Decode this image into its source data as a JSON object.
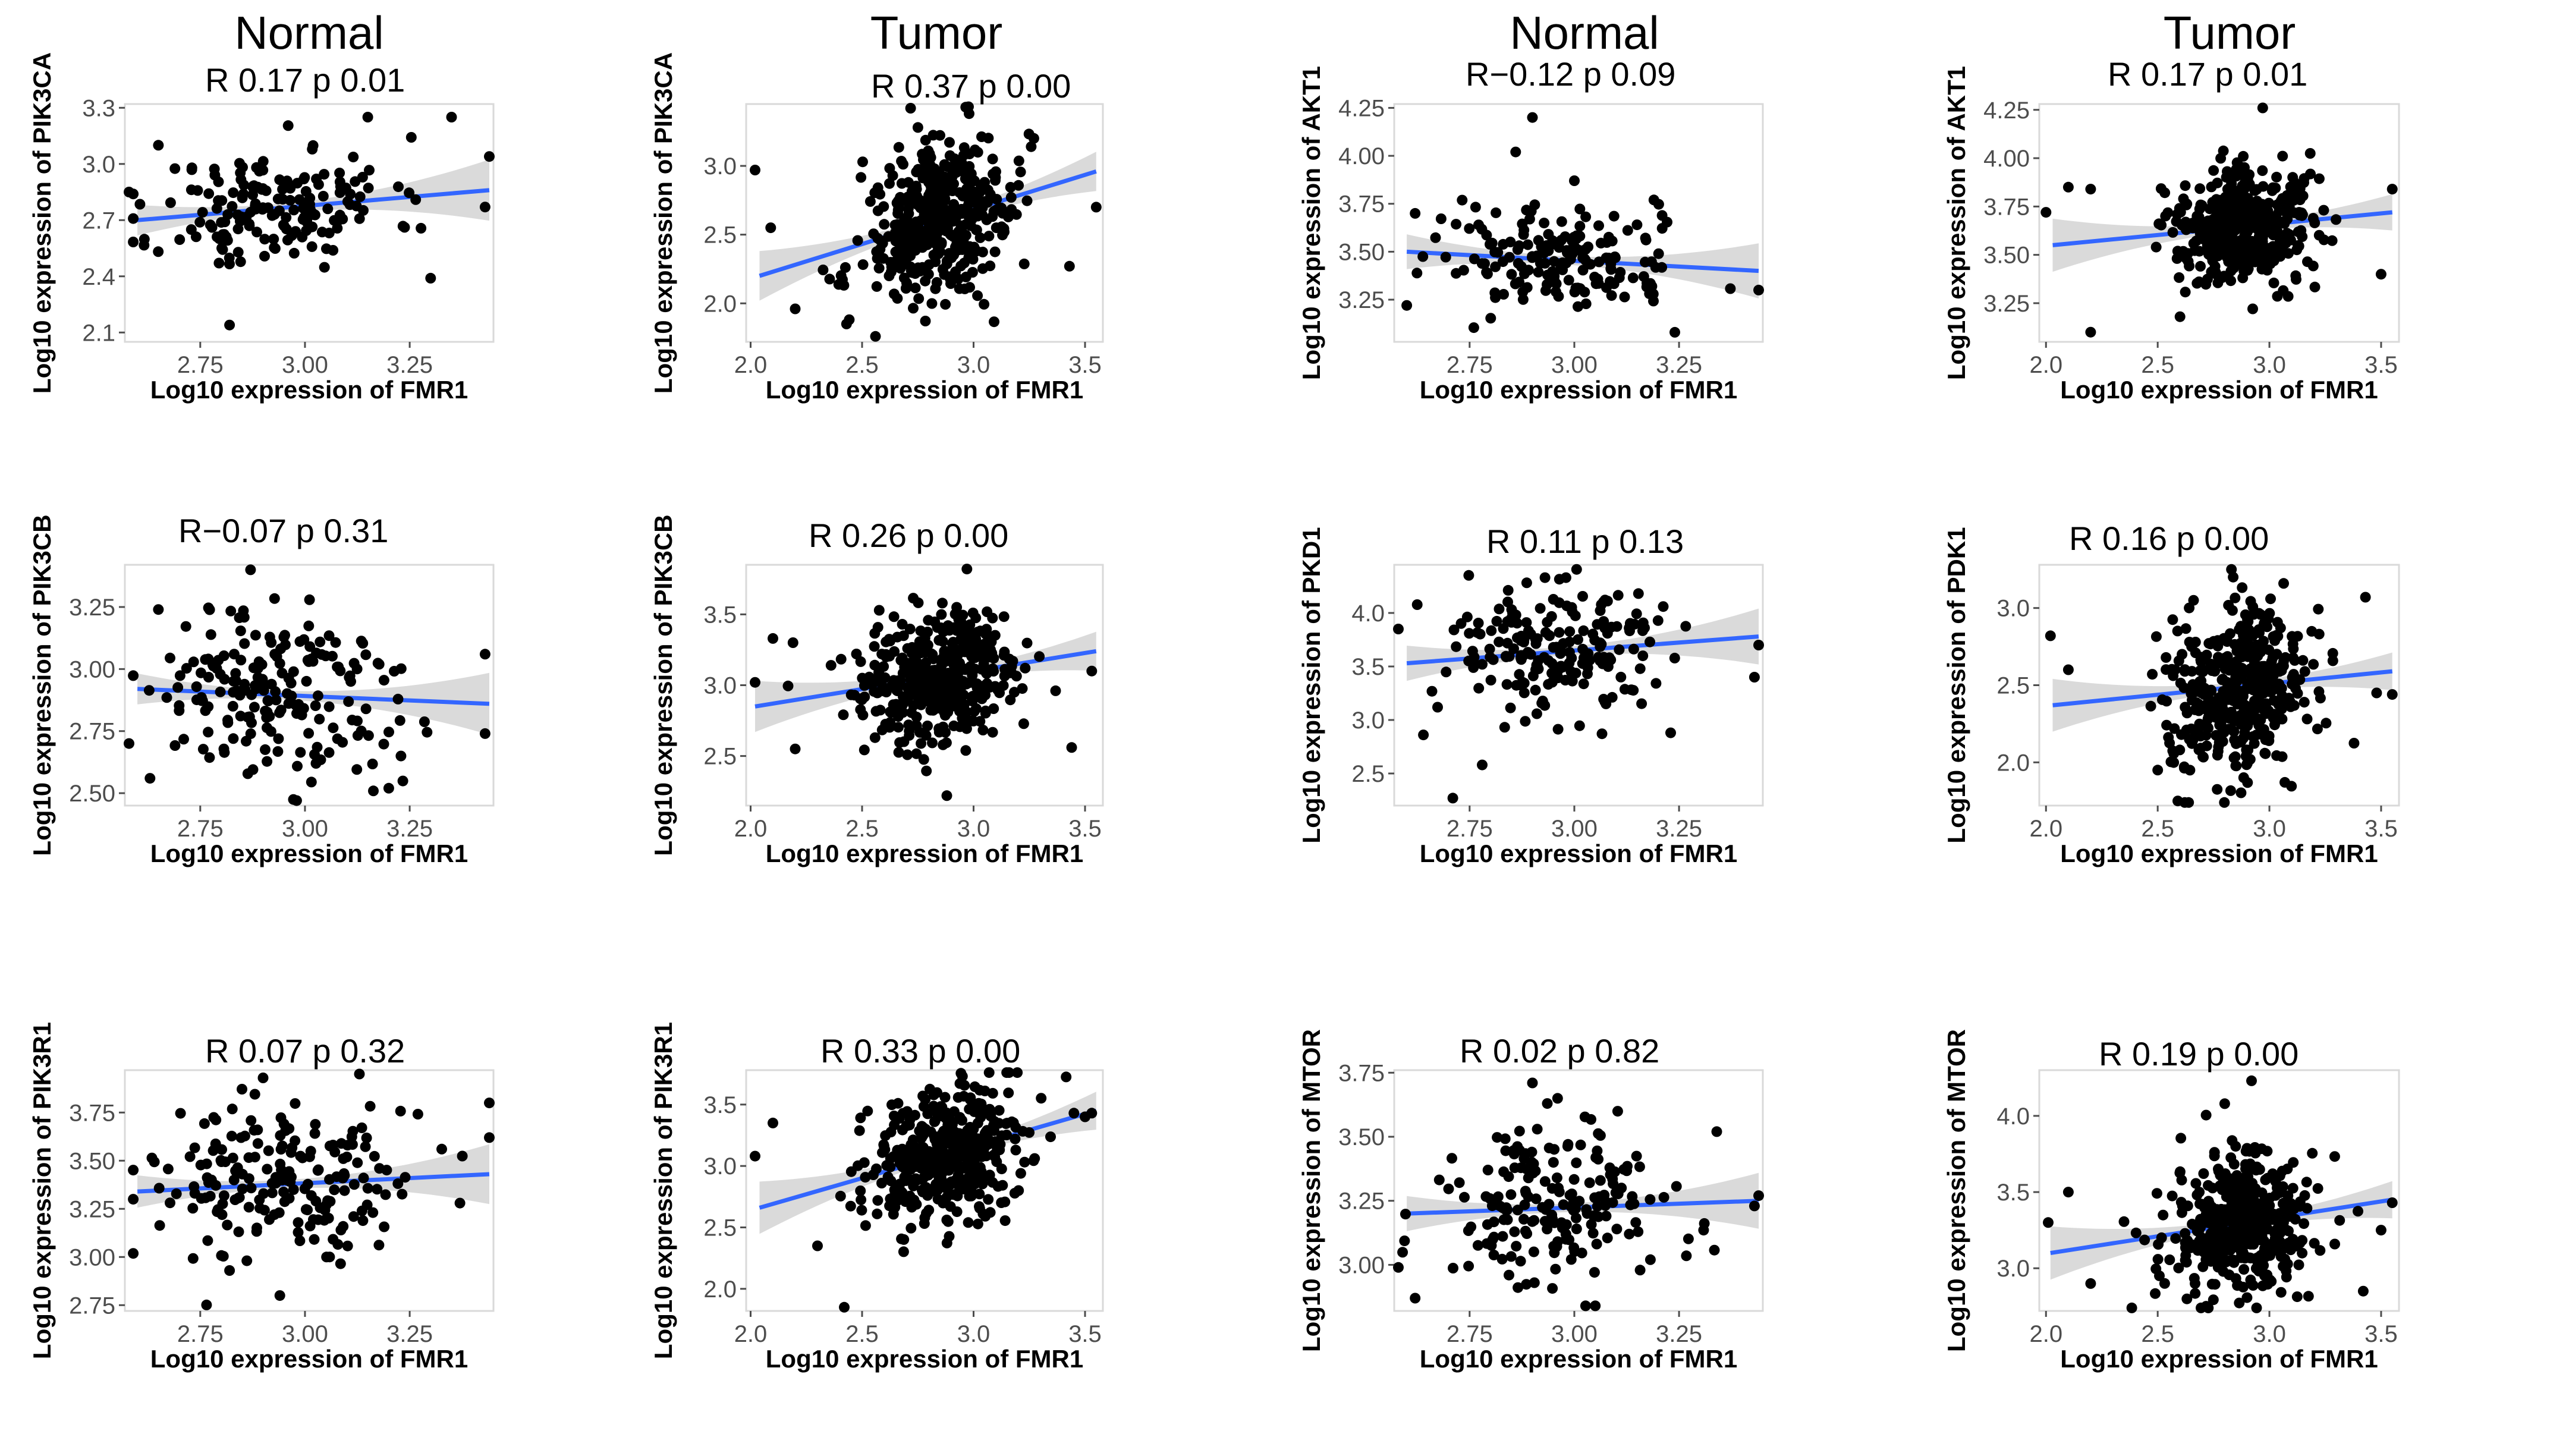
{
  "column_headers": [
    "Normal",
    "Tumor",
    "Normal",
    "Tumor"
  ],
  "chart_data": [
    {
      "type": "scatter",
      "group": "Normal",
      "title": "R 0.17  p 0.01",
      "xlabel": "Log10 expression of FMR1",
      "ylabel": "Log10 expression of PIK3CA",
      "xlim": [
        2.57,
        3.45
      ],
      "ylim": [
        2.05,
        3.32
      ],
      "xticks": [
        "2.75",
        "3.00",
        "3.25"
      ],
      "xtick_values": [
        2.75,
        3.0,
        3.25
      ],
      "yticks": [
        "2.1",
        "2.4",
        "2.7",
        "3.0",
        "3.3"
      ],
      "ytick_values": [
        2.1,
        2.4,
        2.7,
        3.0,
        3.3
      ],
      "fit": {
        "x": [
          2.6,
          3.44
        ],
        "y": [
          2.7,
          2.86
        ]
      },
      "cloud": {
        "n": 170,
        "center": [
          2.93,
          2.78
        ],
        "sd": [
          0.14,
          0.16
        ],
        "seed": 11
      },
      "points": [
        [
          2.82,
          2.14
        ],
        [
          3.3,
          2.39
        ],
        [
          2.65,
          3.1
        ],
        [
          3.35,
          3.25
        ],
        [
          3.44,
          3.04
        ],
        [
          3.43,
          2.77
        ],
        [
          2.58,
          2.85
        ],
        [
          3.15,
          3.25
        ]
      ]
    },
    {
      "type": "scatter",
      "group": "Tumor",
      "title": "R 0.37  p 0.00",
      "xlabel": "Log10 expression of FMR1",
      "ylabel": "Log10 expression of PIK3CA",
      "xlim": [
        1.98,
        3.58
      ],
      "ylim": [
        1.72,
        3.45
      ],
      "xticks": [
        "2.0",
        "2.5",
        "3.0",
        "3.5"
      ],
      "xtick_values": [
        2.0,
        2.5,
        3.0,
        3.5
      ],
      "yticks": [
        "2.0",
        "2.5",
        "3.0"
      ],
      "ytick_values": [
        2.0,
        2.5,
        3.0
      ],
      "fit": {
        "x": [
          2.04,
          3.55
        ],
        "y": [
          2.2,
          2.96
        ]
      },
      "cloud": {
        "n": 430,
        "center": [
          2.85,
          2.62
        ],
        "sd": [
          0.17,
          0.28
        ],
        "seed": 21
      },
      "points": [
        [
          2.02,
          2.97
        ],
        [
          2.09,
          2.55
        ],
        [
          2.2,
          1.96
        ],
        [
          2.43,
          1.85
        ],
        [
          2.56,
          1.76
        ],
        [
          3.43,
          2.27
        ],
        [
          3.55,
          2.7
        ],
        [
          2.98,
          3.38
        ]
      ]
    },
    {
      "type": "scatter",
      "group": "Normal",
      "title": "R−0.12 p 0.09",
      "xlabel": "Log10 expression of FMR1",
      "ylabel": "Log10 expression of AKT1",
      "xlim": [
        2.57,
        3.45
      ],
      "ylim": [
        3.03,
        4.27
      ],
      "xticks": [
        "2.75",
        "3.00",
        "3.25"
      ],
      "xtick_values": [
        2.75,
        3.0,
        3.25
      ],
      "yticks": [
        "3.25",
        "3.50",
        "3.75",
        "4.00",
        "4.25"
      ],
      "ytick_values": [
        3.25,
        3.5,
        3.75,
        4.0,
        4.25
      ],
      "fit": {
        "x": [
          2.6,
          3.44
        ],
        "y": [
          3.5,
          3.4
        ]
      },
      "cloud": {
        "n": 170,
        "center": [
          2.96,
          3.44
        ],
        "sd": [
          0.15,
          0.13
        ],
        "seed": 31
      },
      "points": [
        [
          2.9,
          4.2
        ],
        [
          2.86,
          4.02
        ],
        [
          2.6,
          3.22
        ],
        [
          3.24,
          3.08
        ],
        [
          3.44,
          3.3
        ],
        [
          3.19,
          3.77
        ],
        [
          3.0,
          3.87
        ],
        [
          2.62,
          3.7
        ]
      ]
    },
    {
      "type": "scatter",
      "group": "Tumor",
      "title": "R 0.17  p 0.01",
      "xlabel": "Log10 expression of FMR1",
      "ylabel": "Log10 expression of AKT1",
      "xlim": [
        1.97,
        3.58
      ],
      "ylim": [
        3.05,
        4.28
      ],
      "xticks": [
        "2.0",
        "2.5",
        "3.0",
        "3.5"
      ],
      "xtick_values": [
        2.0,
        2.5,
        3.0,
        3.5
      ],
      "yticks": [
        "3.25",
        "3.50",
        "3.75",
        "4.00",
        "4.25"
      ],
      "ytick_values": [
        3.25,
        3.5,
        3.75,
        4.0,
        4.25
      ],
      "fit": {
        "x": [
          2.03,
          3.55
        ],
        "y": [
          3.55,
          3.72
        ]
      },
      "cloud": {
        "n": 430,
        "center": [
          2.88,
          3.66
        ],
        "sd": [
          0.16,
          0.15
        ],
        "seed": 41
      },
      "points": [
        [
          2.0,
          3.72
        ],
        [
          2.1,
          3.85
        ],
        [
          2.2,
          3.84
        ],
        [
          2.2,
          3.1
        ],
        [
          2.97,
          4.26
        ],
        [
          3.5,
          3.4
        ],
        [
          3.55,
          3.84
        ],
        [
          2.6,
          3.18
        ]
      ]
    },
    {
      "type": "scatter",
      "group": "Normal",
      "title": "R−0.07 p 0.31",
      "xlabel": "Log10 expression of FMR1",
      "ylabel": "Log10 expression of PIK3CB",
      "xlim": [
        2.57,
        3.45
      ],
      "ylim": [
        2.45,
        3.42
      ],
      "xticks": [
        "2.75",
        "3.00",
        "3.25"
      ],
      "xtick_values": [
        2.75,
        3.0,
        3.25
      ],
      "yticks": [
        "2.50",
        "2.75",
        "3.00",
        "3.25"
      ],
      "ytick_values": [
        2.5,
        2.75,
        3.0,
        3.25
      ],
      "fit": {
        "x": [
          2.6,
          3.44
        ],
        "y": [
          2.92,
          2.86
        ]
      },
      "cloud": {
        "n": 190,
        "center": [
          2.93,
          2.9
        ],
        "sd": [
          0.15,
          0.18
        ],
        "seed": 51
      },
      "points": [
        [
          2.87,
          3.4
        ],
        [
          2.58,
          2.7
        ],
        [
          2.63,
          2.56
        ],
        [
          2.65,
          3.24
        ],
        [
          3.43,
          3.06
        ],
        [
          3.43,
          2.74
        ],
        [
          2.98,
          2.47
        ],
        [
          3.2,
          2.52
        ]
      ]
    },
    {
      "type": "scatter",
      "group": "Tumor",
      "title": "R 0.26  p 0.00",
      "xlabel": "Log10 expression of FMR1",
      "ylabel": "Log10 expression of PIK3CB",
      "xlim": [
        1.98,
        3.58
      ],
      "ylim": [
        2.15,
        3.85
      ],
      "xticks": [
        "2.0",
        "2.5",
        "3.0",
        "3.5"
      ],
      "xtick_values": [
        2.0,
        2.5,
        3.0,
        3.5
      ],
      "yticks": [
        "2.5",
        "3.0",
        "3.5"
      ],
      "ytick_values": [
        2.5,
        3.0,
        3.5
      ],
      "fit": {
        "x": [
          2.02,
          3.55
        ],
        "y": [
          2.85,
          3.24
        ]
      },
      "cloud": {
        "n": 430,
        "center": [
          2.85,
          3.08
        ],
        "sd": [
          0.17,
          0.22
        ],
        "seed": 61
      },
      "points": [
        [
          2.02,
          3.02
        ],
        [
          2.1,
          3.33
        ],
        [
          2.19,
          3.3
        ],
        [
          2.2,
          2.55
        ],
        [
          2.88,
          2.22
        ],
        [
          3.44,
          2.56
        ],
        [
          3.53,
          3.1
        ],
        [
          2.97,
          3.82
        ]
      ]
    },
    {
      "type": "scatter",
      "group": "Normal",
      "title": "R 0.11  p 0.13",
      "xlabel": "Log10 expression of FMR1",
      "ylabel": "Log10 expression of PKD1",
      "xlim": [
        2.57,
        3.45
      ],
      "ylim": [
        2.2,
        4.45
      ],
      "xticks": [
        "2.75",
        "3.00",
        "3.25"
      ],
      "xtick_values": [
        2.75,
        3.0,
        3.25
      ],
      "yticks": [
        "2.5",
        "3.0",
        "3.5",
        "4.0"
      ],
      "ytick_values": [
        2.5,
        3.0,
        3.5,
        4.0
      ],
      "fit": {
        "x": [
          2.6,
          3.44
        ],
        "y": [
          3.53,
          3.78
        ]
      },
      "cloud": {
        "n": 190,
        "center": [
          2.96,
          3.65
        ],
        "sd": [
          0.15,
          0.33
        ],
        "seed": 71
      },
      "points": [
        [
          2.71,
          2.27
        ],
        [
          2.78,
          2.58
        ],
        [
          3.23,
          2.88
        ],
        [
          2.58,
          3.85
        ],
        [
          3.43,
          3.4
        ],
        [
          3.44,
          3.7
        ],
        [
          2.93,
          4.33
        ],
        [
          2.98,
          4.33
        ]
      ]
    },
    {
      "type": "scatter",
      "group": "Tumor",
      "title": "R 0.16  p 0.00",
      "xlabel": "Log10 expression of FMR1",
      "ylabel": "Log10 expression of PDK1",
      "xlim": [
        1.97,
        3.58
      ],
      "ylim": [
        1.72,
        3.28
      ],
      "xticks": [
        "2.0",
        "2.5",
        "3.0",
        "3.5"
      ],
      "xtick_values": [
        2.0,
        2.5,
        3.0,
        3.5
      ],
      "yticks": [
        "2.0",
        "2.5",
        "3.0"
      ],
      "ytick_values": [
        2.0,
        2.5,
        3.0
      ],
      "fit": {
        "x": [
          2.03,
          3.55
        ],
        "y": [
          2.37,
          2.59
        ]
      },
      "cloud": {
        "n": 430,
        "center": [
          2.87,
          2.5
        ],
        "sd": [
          0.16,
          0.27
        ],
        "seed": 81
      },
      "points": [
        [
          2.02,
          2.82
        ],
        [
          2.1,
          2.6
        ],
        [
          2.59,
          1.75
        ],
        [
          2.83,
          3.25
        ],
        [
          3.43,
          3.07
        ],
        [
          3.48,
          2.45
        ],
        [
          3.55,
          2.44
        ],
        [
          2.5,
          1.95
        ]
      ]
    },
    {
      "type": "scatter",
      "group": "Normal",
      "title": "R 0.07  p 0.32",
      "xlabel": "Log10 expression of FMR1",
      "ylabel": "Log10 expression of PIK3R1",
      "xlim": [
        2.57,
        3.45
      ],
      "ylim": [
        2.72,
        3.97
      ],
      "xticks": [
        "2.75",
        "3.00",
        "3.25"
      ],
      "xtick_values": [
        2.75,
        3.0,
        3.25
      ],
      "yticks": [
        "2.75",
        "3.00",
        "3.25",
        "3.50",
        "3.75"
      ],
      "ytick_values": [
        2.75,
        3.0,
        3.25,
        3.5,
        3.75
      ],
      "fit": {
        "x": [
          2.6,
          3.44
        ],
        "y": [
          3.34,
          3.43
        ]
      },
      "cloud": {
        "n": 190,
        "center": [
          2.94,
          3.37
        ],
        "sd": [
          0.15,
          0.2
        ],
        "seed": 91
      },
      "points": [
        [
          2.59,
          3.3
        ],
        [
          2.94,
          2.8
        ],
        [
          2.9,
          3.93
        ],
        [
          3.13,
          3.95
        ],
        [
          3.44,
          3.8
        ],
        [
          3.44,
          3.62
        ],
        [
          3.37,
          3.28
        ],
        [
          2.82,
          2.93
        ]
      ]
    },
    {
      "type": "scatter",
      "group": "Tumor",
      "title": "R 0.33  p 0.00",
      "xlabel": "Log10 expression of FMR1",
      "ylabel": "Log10 expression of PIK3R1",
      "xlim": [
        1.98,
        3.58
      ],
      "ylim": [
        1.82,
        3.78
      ],
      "xticks": [
        "2.0",
        "2.5",
        "3.0",
        "3.5"
      ],
      "xtick_values": [
        2.0,
        2.5,
        3.0,
        3.5
      ],
      "yticks": [
        "2.0",
        "2.5",
        "3.0",
        "3.5"
      ],
      "ytick_values": [
        2.0,
        2.5,
        3.0,
        3.5
      ],
      "fit": {
        "x": [
          2.04,
          3.55
        ],
        "y": [
          2.66,
          3.45
        ]
      },
      "cloud": {
        "n": 430,
        "center": [
          2.87,
          3.12
        ],
        "sd": [
          0.17,
          0.27
        ],
        "seed": 101
      },
      "points": [
        [
          2.02,
          3.08
        ],
        [
          2.1,
          3.35
        ],
        [
          2.42,
          1.85
        ],
        [
          2.95,
          3.73
        ],
        [
          3.53,
          3.43
        ],
        [
          3.45,
          3.43
        ],
        [
          2.3,
          2.35
        ],
        [
          3.5,
          3.4
        ]
      ]
    },
    {
      "type": "scatter",
      "group": "Normal",
      "title": "R 0.02  p 0.82",
      "xlabel": "Log10 expression of FMR1",
      "ylabel": "Log10 expression of MTOR",
      "xlim": [
        2.57,
        3.45
      ],
      "ylim": [
        2.82,
        3.76
      ],
      "xticks": [
        "2.75",
        "3.00",
        "3.25"
      ],
      "xtick_values": [
        2.75,
        3.0,
        3.25
      ],
      "yticks": [
        "3.00",
        "3.25",
        "3.50",
        "3.75"
      ],
      "ytick_values": [
        3.0,
        3.25,
        3.5,
        3.75
      ],
      "fit": {
        "x": [
          2.6,
          3.44
        ],
        "y": [
          3.2,
          3.25
        ]
      },
      "cloud": {
        "n": 190,
        "center": [
          2.96,
          3.22
        ],
        "sd": [
          0.15,
          0.15
        ],
        "seed": 111
      },
      "points": [
        [
          2.9,
          3.71
        ],
        [
          2.96,
          3.65
        ],
        [
          2.62,
          2.87
        ],
        [
          3.44,
          3.27
        ],
        [
          3.43,
          3.23
        ],
        [
          3.34,
          3.52
        ],
        [
          2.58,
          2.99
        ],
        [
          3.05,
          2.84
        ]
      ]
    },
    {
      "type": "scatter",
      "group": "Tumor",
      "title": "R 0.19  p 0.00",
      "xlabel": "Log10 expression of FMR1",
      "ylabel": "Log10 expression of MTOR",
      "xlim": [
        1.97,
        3.58
      ],
      "ylim": [
        2.72,
        4.3
      ],
      "xticks": [
        "2.0",
        "2.5",
        "3.0",
        "3.5"
      ],
      "xtick_values": [
        2.0,
        2.5,
        3.0,
        3.5
      ],
      "yticks": [
        "3.0",
        "3.5",
        "4.0"
      ],
      "ytick_values": [
        3.0,
        3.5,
        4.0
      ],
      "fit": {
        "x": [
          2.02,
          3.55
        ],
        "y": [
          3.1,
          3.45
        ]
      },
      "cloud": {
        "n": 430,
        "center": [
          2.87,
          3.33
        ],
        "sd": [
          0.16,
          0.22
        ],
        "seed": 121
      },
      "points": [
        [
          2.01,
          3.3
        ],
        [
          2.1,
          3.5
        ],
        [
          2.92,
          4.23
        ],
        [
          3.55,
          3.43
        ],
        [
          3.5,
          3.25
        ],
        [
          3.42,
          2.85
        ],
        [
          2.2,
          2.9
        ],
        [
          2.8,
          4.08
        ]
      ]
    }
  ]
}
